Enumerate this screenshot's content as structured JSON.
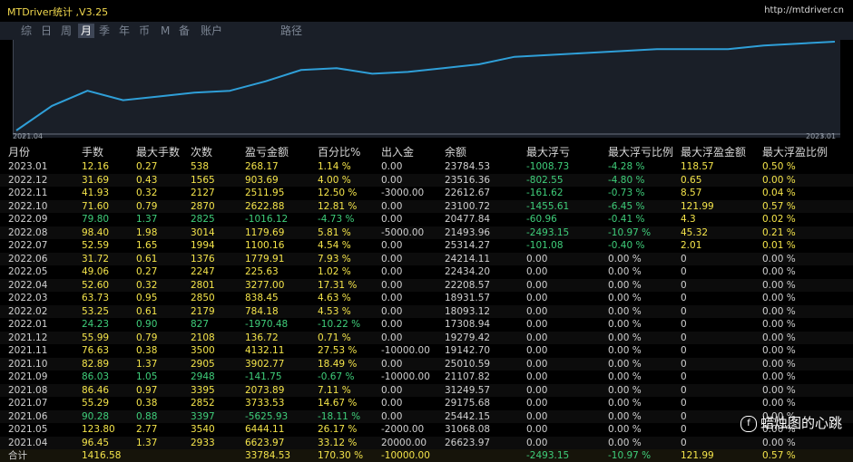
{
  "window": {
    "title": "MTDriver统计 ,V3.25",
    "url": "http://mtdriver.cn"
  },
  "tabs": [
    {
      "label": "综",
      "active": false
    },
    {
      "label": "日",
      "active": false
    },
    {
      "label": "周",
      "active": false
    },
    {
      "label": "月",
      "active": true
    },
    {
      "label": "季",
      "active": false
    },
    {
      "label": "年",
      "active": false
    },
    {
      "label": "币",
      "active": false
    },
    {
      "label": "M",
      "active": false
    },
    {
      "label": "备",
      "active": false
    },
    {
      "label": "账户",
      "active": false
    },
    {
      "label": "路径",
      "active": false
    }
  ],
  "chart_data": {
    "type": "line",
    "x_start_label": "2021.04",
    "x_end_label": "2023.01",
    "values": [
      10,
      23,
      31,
      26,
      28,
      30,
      31,
      36,
      42,
      43,
      40,
      41,
      43,
      45,
      49,
      50,
      51,
      52,
      53,
      53,
      53,
      55,
      56,
      57
    ],
    "line_color": "#2f9fd8"
  },
  "table": {
    "headers": [
      "月份",
      "手数",
      "最大手数",
      "次数",
      "盈亏金额",
      "百分比%",
      "出入金",
      "余额",
      "最大浮亏",
      "最大浮亏比例",
      "最大浮盈金额",
      "最大浮盈比例"
    ],
    "rows": [
      [
        "2023.01",
        "12.16",
        "0.27",
        "538",
        "268.17",
        "1.14 %",
        "0.00",
        "23784.53",
        "-1008.73",
        "-4.28 %",
        "118.57",
        "0.50 %"
      ],
      [
        "2022.12",
        "31.69",
        "0.43",
        "1565",
        "903.69",
        "4.00 %",
        "0.00",
        "23516.36",
        "-802.55",
        "-4.80 %",
        "0.65",
        "0.00 %"
      ],
      [
        "2022.11",
        "41.93",
        "0.32",
        "2127",
        "2511.95",
        "12.50 %",
        "-3000.00",
        "22612.67",
        "-161.62",
        "-0.73 %",
        "8.57",
        "0.04 %"
      ],
      [
        "2022.10",
        "71.60",
        "0.79",
        "2870",
        "2622.88",
        "12.81 %",
        "0.00",
        "23100.72",
        "-1455.61",
        "-6.45 %",
        "121.99",
        "0.57 %"
      ],
      [
        "2022.09",
        "79.80",
        "1.37",
        "2825",
        "-1016.12",
        "-4.73 %",
        "0.00",
        "20477.84",
        "-60.96",
        "-0.41 %",
        "4.3",
        "0.02 %"
      ],
      [
        "2022.08",
        "98.40",
        "1.98",
        "3014",
        "1179.69",
        "5.81 %",
        "-5000.00",
        "21493.96",
        "-2493.15",
        "-10.97 %",
        "45.32",
        "0.21 %"
      ],
      [
        "2022.07",
        "52.59",
        "1.65",
        "1994",
        "1100.16",
        "4.54 %",
        "0.00",
        "25314.27",
        "-101.08",
        "-0.40 %",
        "2.01",
        "0.01 %"
      ],
      [
        "2022.06",
        "31.72",
        "0.61",
        "1376",
        "1779.91",
        "7.93 %",
        "0.00",
        "24214.11",
        "0.00",
        "0.00 %",
        "0",
        "0.00 %"
      ],
      [
        "2022.05",
        "49.06",
        "0.27",
        "2247",
        "225.63",
        "1.02 %",
        "0.00",
        "22434.20",
        "0.00",
        "0.00 %",
        "0",
        "0.00 %"
      ],
      [
        "2022.04",
        "52.60",
        "0.32",
        "2801",
        "3277.00",
        "17.31 %",
        "0.00",
        "22208.57",
        "0.00",
        "0.00 %",
        "0",
        "0.00 %"
      ],
      [
        "2022.03",
        "63.73",
        "0.95",
        "2850",
        "838.45",
        "4.63 %",
        "0.00",
        "18931.57",
        "0.00",
        "0.00 %",
        "0",
        "0.00 %"
      ],
      [
        "2022.02",
        "53.25",
        "0.61",
        "2179",
        "784.18",
        "4.53 %",
        "0.00",
        "18093.12",
        "0.00",
        "0.00 %",
        "0",
        "0.00 %"
      ],
      [
        "2022.01",
        "24.23",
        "0.90",
        "827",
        "-1970.48",
        "-10.22 %",
        "0.00",
        "17308.94",
        "0.00",
        "0.00 %",
        "0",
        "0.00 %"
      ],
      [
        "2021.12",
        "55.99",
        "0.79",
        "2108",
        "136.72",
        "0.71 %",
        "0.00",
        "19279.42",
        "0.00",
        "0.00 %",
        "0",
        "0.00 %"
      ],
      [
        "2021.11",
        "76.63",
        "0.38",
        "3500",
        "4132.11",
        "27.53 %",
        "-10000.00",
        "19142.70",
        "0.00",
        "0.00 %",
        "0",
        "0.00 %"
      ],
      [
        "2021.10",
        "82.89",
        "1.37",
        "2905",
        "3902.77",
        "18.49 %",
        "0.00",
        "25010.59",
        "0.00",
        "0.00 %",
        "0",
        "0.00 %"
      ],
      [
        "2021.09",
        "86.03",
        "1.05",
        "2948",
        "-141.75",
        "-0.67 %",
        "-10000.00",
        "21107.82",
        "0.00",
        "0.00 %",
        "0",
        "0.00 %"
      ],
      [
        "2021.08",
        "86.46",
        "0.97",
        "3395",
        "2073.89",
        "7.11 %",
        "0.00",
        "31249.57",
        "0.00",
        "0.00 %",
        "0",
        "0.00 %"
      ],
      [
        "2021.07",
        "55.29",
        "0.38",
        "2852",
        "3733.53",
        "14.67 %",
        "0.00",
        "29175.68",
        "0.00",
        "0.00 %",
        "0",
        "0.00 %"
      ],
      [
        "2021.06",
        "90.28",
        "0.88",
        "3397",
        "-5625.93",
        "-18.11 %",
        "0.00",
        "25442.15",
        "0.00",
        "0.00 %",
        "0",
        "0.00 %"
      ],
      [
        "2021.05",
        "123.80",
        "2.77",
        "3540",
        "6444.11",
        "26.17 %",
        "-2000.00",
        "31068.08",
        "0.00",
        "0.00 %",
        "0",
        "0.00 %"
      ],
      [
        "2021.04",
        "96.45",
        "1.37",
        "2933",
        "6623.97",
        "33.12 %",
        "20000.00",
        "26623.97",
        "0.00",
        "0.00 %",
        "0",
        "0.00 %"
      ]
    ],
    "total": [
      "合计",
      "1416.58",
      "",
      "",
      "33784.53",
      "170.30 %",
      "-10000.00",
      "",
      "-2493.15",
      "-10.97 %",
      "121.99",
      "0.57 %"
    ]
  },
  "watermark": {
    "text": "蜡烛图的心跳"
  },
  "colors": {
    "positive": "#f4e44a",
    "negative": "#3fce7a",
    "neutral": "#d0d0d0"
  }
}
